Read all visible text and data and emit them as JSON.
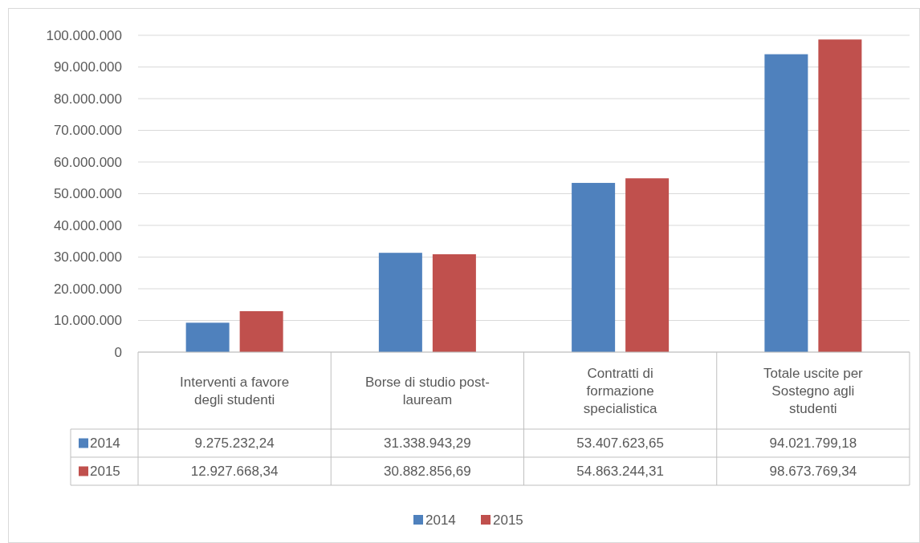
{
  "chart_data": {
    "type": "bar",
    "categories": [
      "Interventi a favore degli studenti",
      "Borse di studio post-lauream",
      "Contratti di formazione specialistica",
      "Totale uscite per Sostegno agli studenti"
    ],
    "series": [
      {
        "name": "2014",
        "color": "#4f81bd",
        "values": [
          9275232.24,
          31338943.29,
          53407623.65,
          94021799.18
        ],
        "value_labels": [
          "9.275.232,24",
          "31.338.943,29",
          "53.407.623,65",
          "94.021.799,18"
        ]
      },
      {
        "name": "2015",
        "color": "#c0504d",
        "values": [
          12927668.34,
          30882856.69,
          54863244.31,
          98673769.34
        ],
        "value_labels": [
          "12.927.668,34",
          "30.882.856,69",
          "54.863.244,31",
          "98.673.769,34"
        ]
      }
    ],
    "ylim": [
      0,
      100000000
    ],
    "yticks": [
      0,
      {
        "value": 10000000,
        "label": "10.000.000"
      },
      {
        "value": 20000000,
        "label": "20.000.000"
      },
      {
        "value": 30000000,
        "label": "30.000.000"
      },
      {
        "value": 40000000,
        "label": "40.000.000"
      },
      {
        "value": 50000000,
        "label": "50.000.000"
      },
      {
        "value": 60000000,
        "label": "60.000.000"
      },
      {
        "value": 70000000,
        "label": "70.000.000"
      },
      {
        "value": 80000000,
        "label": "80.000.000"
      },
      {
        "value": 90000000,
        "label": "90.000.000"
      },
      {
        "value": 100000000,
        "label": "100.000.000"
      }
    ],
    "grid": "y",
    "legend": "bottom"
  }
}
